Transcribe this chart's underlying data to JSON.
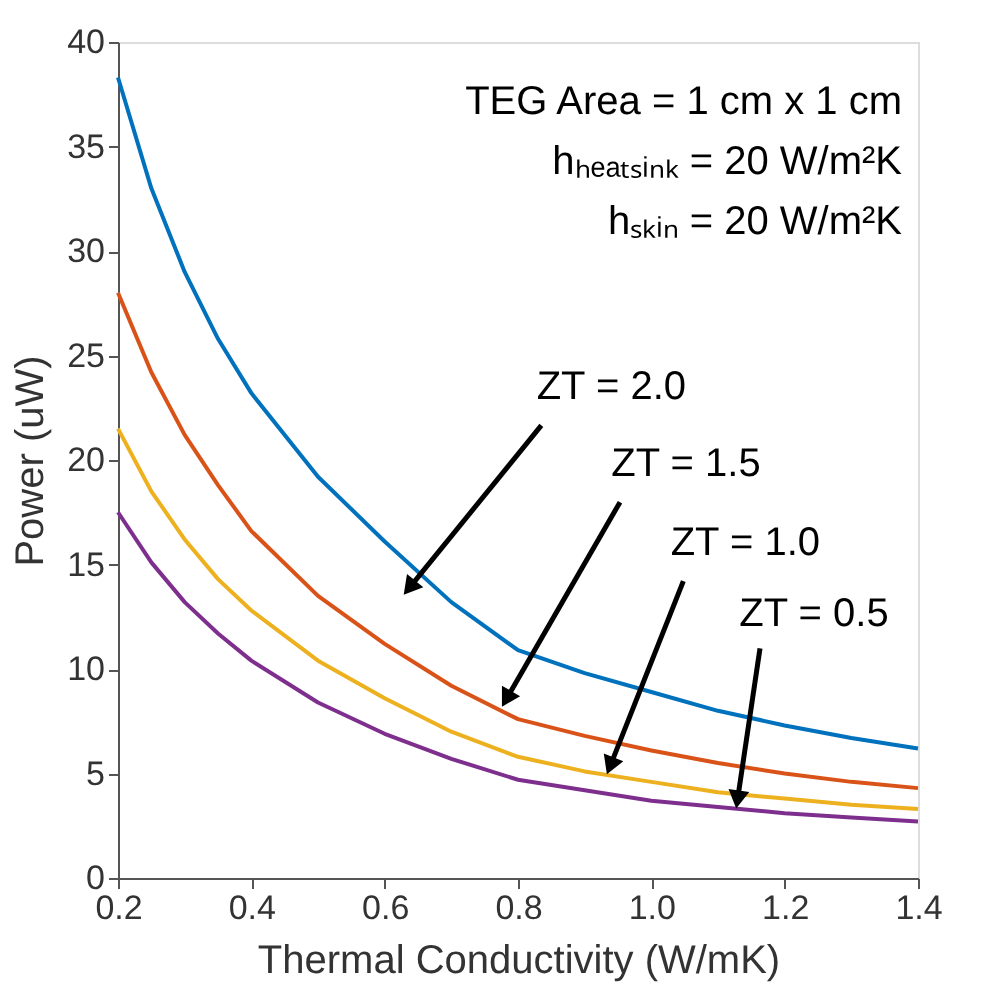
{
  "chart_data": {
    "type": "line",
    "xlabel": "Thermal Conductivity (W/mK)",
    "ylabel": "Power (uW)",
    "x": [
      0.2,
      0.25,
      0.3,
      0.35,
      0.4,
      0.5,
      0.6,
      0.7,
      0.8,
      0.9,
      1.0,
      1.1,
      1.2,
      1.3,
      1.4
    ],
    "series": [
      {
        "color": "#0072bd",
        "values": [
          38.3,
          33,
          29,
          25.8,
          23.2,
          19.2,
          16.1,
          13.2,
          10.9,
          9.8,
          8.9,
          8.0,
          7.3,
          6.7,
          6.2
        ]
      },
      {
        "color": "#d95319",
        "values": [
          28,
          24.2,
          21.2,
          18.8,
          16.6,
          13.5,
          11.2,
          9.2,
          7.6,
          6.8,
          6.1,
          5.5,
          5.0,
          4.6,
          4.3
        ]
      },
      {
        "color": "#edb120",
        "values": [
          21.5,
          18.5,
          16.2,
          14.3,
          12.8,
          10.4,
          8.6,
          7.0,
          5.8,
          5.1,
          4.6,
          4.1,
          3.8,
          3.5,
          3.3
        ]
      },
      {
        "color": "#7e2f8e",
        "values": [
          17.5,
          15.1,
          13.2,
          11.7,
          10.4,
          8.4,
          6.9,
          5.7,
          4.7,
          4.2,
          3.7,
          3.4,
          3.1,
          2.9,
          2.7
        ]
      }
    ],
    "xlim": [
      0.2,
      1.4
    ],
    "xticks": [
      0.2,
      0.4,
      0.6,
      0.8,
      {
        "value": 1,
        "label": "1.0"
      },
      1.2,
      1.4
    ],
    "ylim": [
      0,
      40
    ],
    "yticks": [
      0,
      5,
      10,
      15,
      20,
      25,
      30,
      35,
      40
    ],
    "grid": false,
    "marker": "none",
    "line_style": "solid",
    "annotations": [
      "TEG Area = 1 cm x 1 cm",
      "hₕₑₐₜₛᵢₙₖ = 20 W/m²K",
      "hₛₖᵢₙ = 20 W/m²K",
      {
        "text": "ZT = 2.0",
        "x": 0.64,
        "y": 14
      },
      {
        "text": "ZT = 1.5",
        "x": 0.785,
        "y": 8.7
      },
      {
        "text": "ZT = 1.0",
        "x": 0.94,
        "y": 5.5
      },
      {
        "text": "ZT = 0.5",
        "x": 1.13,
        "y": 3.9
      }
    ]
  }
}
